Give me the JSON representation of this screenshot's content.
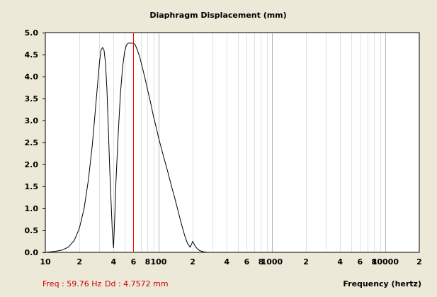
{
  "chart_data": {
    "type": "line",
    "title": "Diaphragm Displacement (mm)",
    "xlabel": "Frequency (hertz)",
    "ylabel": "",
    "x_scale": "log",
    "xlim": [
      10,
      20000
    ],
    "ylim": [
      0,
      5.0
    ],
    "grid": true,
    "y_ticks": [
      "0.0",
      "0.5",
      "1.0",
      "1.5",
      "2.0",
      "2.5",
      "3.0",
      "3.5",
      "4.0",
      "4.5",
      "5.0"
    ],
    "x_ticks": [
      {
        "value": 10,
        "label": "10"
      },
      {
        "value": 20,
        "label": "2"
      },
      {
        "value": 40,
        "label": "4"
      },
      {
        "value": 60,
        "label": "6"
      },
      {
        "value": 80,
        "label": "8"
      },
      {
        "value": 100,
        "label": "100"
      },
      {
        "value": 200,
        "label": "2"
      },
      {
        "value": 400,
        "label": "4"
      },
      {
        "value": 600,
        "label": "6"
      },
      {
        "value": 800,
        "label": "8"
      },
      {
        "value": 1000,
        "label": "1000"
      },
      {
        "value": 2000,
        "label": "2"
      },
      {
        "value": 4000,
        "label": "4"
      },
      {
        "value": 6000,
        "label": "6"
      },
      {
        "value": 8000,
        "label": "8"
      },
      {
        "value": 10000,
        "label": "10000"
      },
      {
        "value": 20000,
        "label": "2"
      }
    ],
    "series": [
      {
        "name": "",
        "color": "#000000",
        "x": [
          10,
          12,
          14,
          16,
          18,
          20,
          22,
          24,
          26,
          28,
          30,
          31,
          32,
          33,
          34,
          35,
          36,
          37,
          38,
          39,
          40,
          41,
          42,
          44,
          46,
          48,
          50,
          52,
          54,
          56,
          58,
          60,
          62,
          65,
          68,
          72,
          76,
          80,
          85,
          90,
          95,
          100,
          110,
          120,
          130,
          140,
          150,
          160,
          170,
          180,
          190,
          195,
          200,
          205,
          210,
          220,
          230,
          250,
          270,
          300
        ],
        "y": [
          0.0,
          0.02,
          0.05,
          0.12,
          0.27,
          0.55,
          1.0,
          1.65,
          2.45,
          3.4,
          4.3,
          4.6,
          4.66,
          4.6,
          4.3,
          3.7,
          2.8,
          1.9,
          1.2,
          0.5,
          0.1,
          0.8,
          1.6,
          2.7,
          3.6,
          4.2,
          4.55,
          4.72,
          4.76,
          4.76,
          4.76,
          4.7572,
          4.73,
          4.6,
          4.45,
          4.2,
          3.95,
          3.7,
          3.4,
          3.1,
          2.85,
          2.6,
          2.2,
          1.85,
          1.5,
          1.2,
          0.9,
          0.62,
          0.38,
          0.2,
          0.12,
          0.18,
          0.25,
          0.2,
          0.14,
          0.08,
          0.04,
          0.01,
          0.0,
          0.0
        ]
      }
    ],
    "cursor": {
      "x": 59.76,
      "color": "#FF0000"
    }
  },
  "readout": {
    "freq": "Freq : 59.76 Hz",
    "dd": "Dd : 4.7572 mm"
  }
}
